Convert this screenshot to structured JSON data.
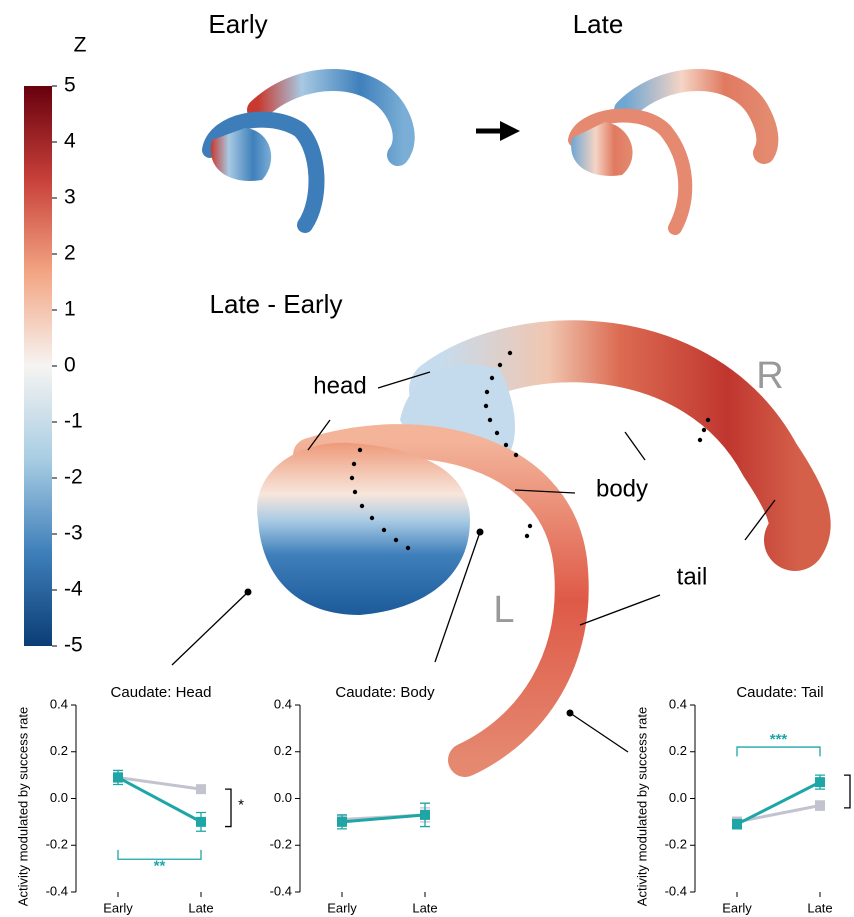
{
  "colorbar": {
    "title": "Z",
    "range": [
      -5,
      5
    ],
    "ticks": [
      5,
      4,
      3,
      2,
      1,
      0,
      -1,
      -2,
      -3,
      -4,
      -5
    ],
    "colors": [
      "#0b3d75",
      "#3f7fba",
      "#a8cde3",
      "#f6f4f2",
      "#f3a583",
      "#c7403a",
      "#67000d"
    ]
  },
  "panel_labels": [
    "Early",
    "Late",
    "Late - Early"
  ],
  "hemispheres": [
    "R",
    "L"
  ],
  "regions": [
    "head",
    "body",
    "tail"
  ],
  "chart_data": [
    {
      "type": "line",
      "title": "Caudate: Head",
      "y_label": "Activity modulated by success rate",
      "categories": [
        "Early",
        "Late"
      ],
      "ylim": [
        -0.4,
        0.4
      ],
      "yticks": [
        -0.4,
        -0.2,
        {
          "value": 0,
          "label": "0.0"
        },
        0.2,
        0.4
      ],
      "series": [
        {
          "color": "#c3c3d0",
          "values": [
            0.09,
            0.04
          ],
          "errors": [
            0.02,
            0.01
          ]
        },
        {
          "color": "#1ea6a6",
          "values": [
            0.09,
            -0.1
          ],
          "errors": [
            0.03,
            0.04
          ]
        }
      ],
      "annotations": [
        {
          "text": "**",
          "color": "#1ea6a6"
        },
        {
          "text": "*",
          "color": "#000000"
        }
      ]
    },
    {
      "type": "line",
      "title": "Caudate: Body",
      "categories": [
        "Early",
        "Late"
      ],
      "ylim": [
        -0.4,
        0.4
      ],
      "yticks": [
        -0.4,
        -0.2,
        {
          "value": 0,
          "label": "0.0"
        },
        0.2,
        0.4
      ],
      "series": [
        {
          "color": "#c3c3d0",
          "values": [
            -0.09,
            -0.07
          ],
          "errors": [
            0.02,
            0.03
          ]
        },
        {
          "color": "#1ea6a6",
          "values": [
            -0.1,
            -0.07
          ],
          "errors": [
            0.03,
            0.05
          ]
        }
      ]
    },
    {
      "type": "line",
      "title": "Caudate: Tail",
      "y_label": "Activity modulated by success rate",
      "categories": [
        "Early",
        "Late"
      ],
      "ylim": [
        -0.4,
        0.4
      ],
      "yticks": [
        -0.4,
        -0.2,
        {
          "value": 0,
          "label": "0.0"
        },
        0.2,
        0.4
      ],
      "series": [
        {
          "color": "#c3c3d0",
          "values": [
            -0.1,
            -0.03
          ],
          "errors": [
            0.02,
            0.02
          ]
        },
        {
          "color": "#1ea6a6",
          "values": [
            -0.11,
            0.07
          ],
          "errors": [
            0.02,
            0.03
          ]
        }
      ],
      "annotations": [
        {
          "text": "***",
          "color": "#1ea6a6"
        }
      ]
    }
  ]
}
